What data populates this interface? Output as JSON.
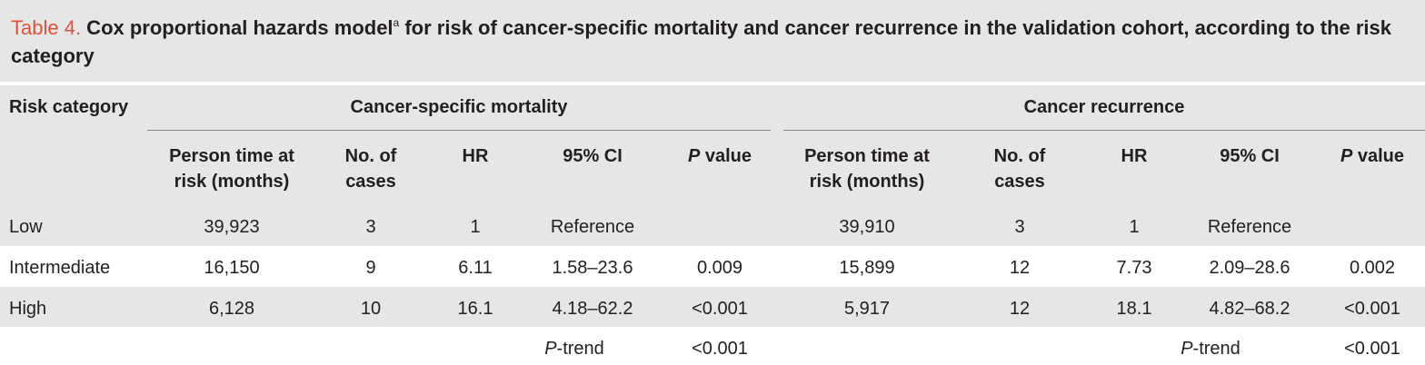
{
  "caption": {
    "label": "Table 4.",
    "text_pre": " Cox proportional hazards model",
    "sup": "a",
    "text_post": " for risk of cancer-specific mortality and cancer recurrence in the validation cohort, according to the risk category"
  },
  "header": {
    "risk_category": "Risk category",
    "group_mortality": "Cancer-specific mortality",
    "group_recurrence": "Cancer recurrence",
    "person_time_1": "Person time at",
    "person_time_2": "risk (months)",
    "cases_1": "No. of",
    "cases_2": "cases",
    "hr": "HR",
    "ci": "95% CI",
    "p_italic": "P",
    "p_rest": " value"
  },
  "rows": [
    {
      "category": "Low",
      "m_pt": "39,923",
      "m_cases": "3",
      "m_hr": "1",
      "m_ci": "Reference",
      "m_p": "",
      "r_pt": "39,910",
      "r_cases": "3",
      "r_hr": "1",
      "r_ci": "Reference",
      "r_p": ""
    },
    {
      "category": "Intermediate",
      "m_pt": "16,150",
      "m_cases": "9",
      "m_hr": "6.11",
      "m_ci": "1.58–23.6",
      "m_p": "0.009",
      "r_pt": "15,899",
      "r_cases": "12",
      "r_hr": "7.73",
      "r_ci": "2.09–28.6",
      "r_p": "0.002"
    },
    {
      "category": "High",
      "m_pt": "6,128",
      "m_cases": "10",
      "m_hr": "16.1",
      "m_ci": "4.18–62.2",
      "m_p": "<0.001",
      "r_pt": "5,917",
      "r_cases": "12",
      "r_hr": "18.1",
      "r_ci": "4.82–68.2",
      "r_p": "<0.001"
    }
  ],
  "trend": {
    "label_italic": "P",
    "label_rest": "-trend",
    "m_p": "<0.001",
    "r_p": "<0.001"
  },
  "colors": {
    "accent": "#e0513c",
    "band": "#e6e6e7",
    "text": "#231f20"
  }
}
